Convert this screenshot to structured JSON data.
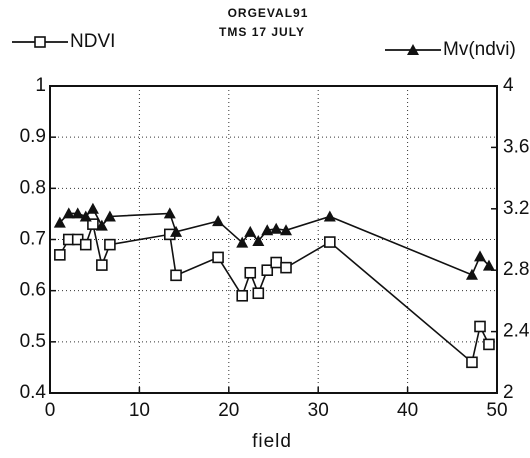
{
  "chart_data": {
    "type": "line",
    "title": [
      "ORGEVAL91",
      "TMS 17 JULY"
    ],
    "x_label": "field",
    "x": [
      1.1,
      2.1,
      3.1,
      4.0,
      4.8,
      5.8,
      6.7,
      13.4,
      14.1,
      18.8,
      21.5,
      22.4,
      23.3,
      24.3,
      25.3,
      26.4,
      31.3,
      47.2,
      48.1,
      49.1
    ],
    "series": [
      {
        "name": "NDVI",
        "color": "#111111",
        "marker": "square",
        "values": [
          0.67,
          0.7,
          0.7,
          0.69,
          0.73,
          0.65,
          0.69,
          0.71,
          0.63,
          0.665,
          0.59,
          0.635,
          0.595,
          0.64,
          0.655,
          0.645,
          0.695,
          0.46,
          0.53,
          0.495
        ]
      },
      {
        "name": "Mv(ndvi)",
        "color": "#111111",
        "marker": "triangle",
        "axis": "y2",
        "values": [
          3.11,
          3.17,
          3.17,
          3.15,
          3.2,
          3.09,
          3.15,
          3.17,
          3.05,
          3.12,
          2.98,
          3.05,
          2.99,
          3.06,
          3.07,
          3.06,
          3.15,
          2.77,
          2.89,
          2.83
        ]
      }
    ],
    "xlim": [
      0,
      50
    ],
    "xticks": [
      0,
      10,
      20,
      30,
      40,
      50
    ],
    "ylim": [
      0.4,
      1
    ],
    "yticks": [
      0.4,
      0.5,
      0.6,
      0.7,
      0.8,
      0.9,
      1
    ],
    "y2lim": [
      2,
      4
    ],
    "y2ticks": [
      2,
      2.4,
      2.8,
      3.2,
      3.6,
      4
    ],
    "grid": true
  }
}
